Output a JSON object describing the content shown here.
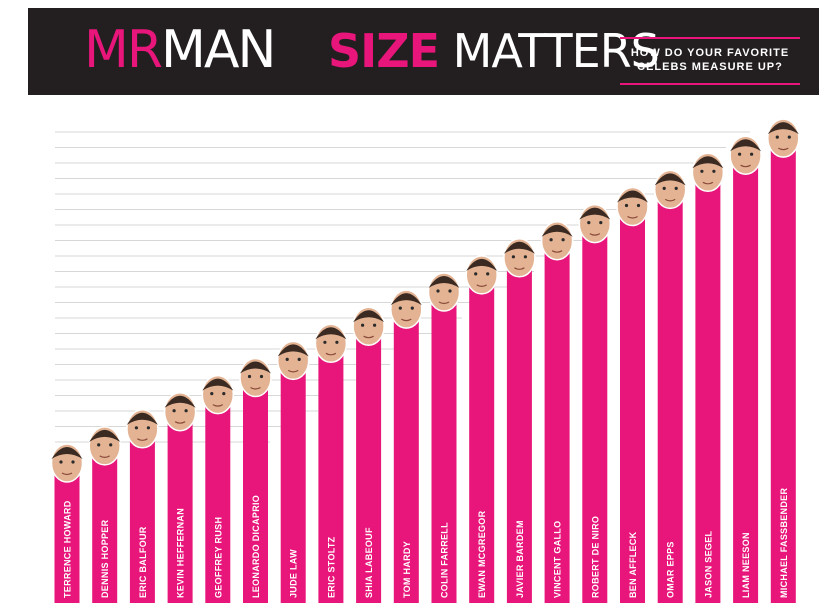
{
  "header": {
    "logo_part1": "MR",
    "logo_part2": "MAN",
    "title_part1": "SIZE",
    "title_part2": " MATTERS",
    "subtitle_line1": "HOW DO YOUR FAVORITE",
    "subtitle_line2": "CELEBS MEASURE UP?"
  },
  "colors": {
    "bar": "#e8157a",
    "header_bg": "#231f20",
    "gridline": "#d7d7d7"
  },
  "chart_data": {
    "type": "bar",
    "title": "SIZE MATTERS",
    "subtitle": "HOW DO YOUR FAVORITE CELEBS MEASURE UP?",
    "xlabel": "",
    "ylabel": "",
    "categories": [
      "TERRENCE HOWARD",
      "DENNIS HOPPER",
      "ERIC BALFOUR",
      "KEVIN HEFFERNAN",
      "GEOFFREY RUSH",
      "LEONARDO DICAPRIO",
      "JUDE LAW",
      "ERIC STOLTZ",
      "SHIA LABEOUF",
      "TOM HARDY",
      "COLIN FARRELL",
      "EWAN MCGREGOR",
      "JAVIER BARDEM",
      "VINCENT GALLO",
      "ROBERT DE NIRO",
      "BEN AFFLECK",
      "OMAR EPPS",
      "JASON SEGEL",
      "LIAM NEESON",
      "MICHAEL FASSBENDER"
    ],
    "values": [
      1,
      2,
      3,
      4,
      5,
      6,
      7,
      8,
      9,
      10,
      11,
      12,
      13,
      14,
      15,
      16,
      17,
      18,
      19,
      20
    ],
    "grid": true,
    "legend": "none"
  }
}
